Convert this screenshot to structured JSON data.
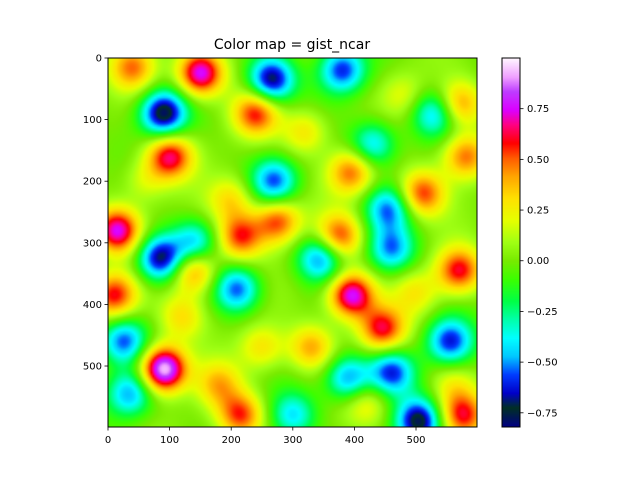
{
  "chart_data": {
    "type": "heatmap",
    "title": "Color map = gist_ncar",
    "colormap": "gist_ncar",
    "xlim": [
      0,
      599
    ],
    "ylim": [
      599,
      0
    ],
    "x_ticks": [
      "0",
      "100",
      "200",
      "300",
      "400",
      "500"
    ],
    "y_ticks": [
      "0",
      "100",
      "200",
      "300",
      "400",
      "500"
    ],
    "colorbar": {
      "range": [
        -0.82,
        1.0
      ],
      "ticks": [
        "−0.75",
        "−0.50",
        "−0.25",
        "0.00",
        "0.25",
        "0.50",
        "0.75"
      ]
    },
    "blobs": [
      {
        "x": 90,
        "y": 505,
        "v": 1.0
      },
      {
        "x": 150,
        "y": 25,
        "v": 0.8
      },
      {
        "x": 395,
        "y": 385,
        "v": 0.8
      },
      {
        "x": 15,
        "y": 280,
        "v": 0.75
      },
      {
        "x": 100,
        "y": 160,
        "v": 0.65
      },
      {
        "x": 90,
        "y": 90,
        "v": -0.8
      },
      {
        "x": 265,
        "y": 35,
        "v": -0.75
      },
      {
        "x": 85,
        "y": 325,
        "v": -0.75
      },
      {
        "x": 505,
        "y": 590,
        "v": -0.75
      },
      {
        "x": 270,
        "y": 200,
        "v": -0.55
      },
      {
        "x": 380,
        "y": 20,
        "v": -0.6
      },
      {
        "x": 455,
        "y": 245,
        "v": -0.5
      },
      {
        "x": 345,
        "y": 325,
        "v": -0.55
      },
      {
        "x": 210,
        "y": 375,
        "v": -0.55
      },
      {
        "x": 25,
        "y": 460,
        "v": -0.55
      },
      {
        "x": 555,
        "y": 460,
        "v": -0.6
      },
      {
        "x": 460,
        "y": 510,
        "v": -0.6
      },
      {
        "x": 390,
        "y": 520,
        "v": -0.55
      },
      {
        "x": 460,
        "y": 310,
        "v": -0.5
      },
      {
        "x": 580,
        "y": 160,
        "v": 0.5
      },
      {
        "x": 300,
        "y": 580,
        "v": -0.4
      },
      {
        "x": 530,
        "y": 90,
        "v": -0.45
      },
      {
        "x": 180,
        "y": 530,
        "v": 0.35
      },
      {
        "x": 240,
        "y": 90,
        "v": 0.55
      },
      {
        "x": 275,
        "y": 265,
        "v": 0.55
      },
      {
        "x": 215,
        "y": 290,
        "v": 0.55
      },
      {
        "x": 140,
        "y": 345,
        "v": 0.5
      },
      {
        "x": 10,
        "y": 385,
        "v": 0.6
      },
      {
        "x": 215,
        "y": 580,
        "v": 0.55
      },
      {
        "x": 575,
        "y": 580,
        "v": 0.55
      },
      {
        "x": 445,
        "y": 440,
        "v": 0.6
      },
      {
        "x": 375,
        "y": 290,
        "v": 0.55
      },
      {
        "x": 570,
        "y": 345,
        "v": 0.6
      },
      {
        "x": 510,
        "y": 220,
        "v": 0.55
      },
      {
        "x": 395,
        "y": 185,
        "v": 0.5
      },
      {
        "x": 570,
        "y": 75,
        "v": 0.45
      },
      {
        "x": 40,
        "y": 15,
        "v": 0.45
      },
      {
        "x": 330,
        "y": 470,
        "v": 0.4
      },
      {
        "x": 140,
        "y": 300,
        "v": -0.45
      },
      {
        "x": 35,
        "y": 545,
        "v": -0.5
      },
      {
        "x": 430,
        "y": 140,
        "v": -0.45
      },
      {
        "x": 60,
        "y": 200,
        "v": 0.2
      },
      {
        "x": 200,
        "y": 230,
        "v": 0.3
      },
      {
        "x": 320,
        "y": 120,
        "v": 0.3
      },
      {
        "x": 480,
        "y": 60,
        "v": 0.2
      },
      {
        "x": 250,
        "y": 470,
        "v": 0.3
      },
      {
        "x": 560,
        "y": 530,
        "v": 0.2
      },
      {
        "x": 120,
        "y": 420,
        "v": 0.3
      },
      {
        "x": 500,
        "y": 380,
        "v": 0.25
      },
      {
        "x": 420,
        "y": 560,
        "v": 0.25
      }
    ]
  }
}
